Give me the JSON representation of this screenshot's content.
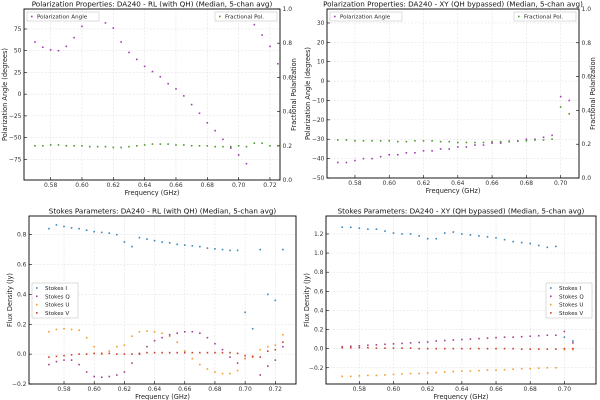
{
  "chart_data": [
    {
      "type": "scatter",
      "title": "Polarization Properties: DA240 - RL (with QH) (Median, 5-chan avg)",
      "xlabel": "Frequency (GHz)",
      "ylabel": "Polarization Angle (degrees)",
      "y2label": "Fractional Polarization",
      "xlim": [
        0.563,
        0.7264
      ],
      "ylim": [
        -98.8,
        98
      ],
      "y2lim": [
        0,
        1
      ],
      "xticks": [
        "0.58",
        "0.60",
        "0.62",
        "0.64",
        "0.66",
        "0.68",
        "0.70",
        "0.72"
      ],
      "yticks": [
        "-75",
        "-50",
        "-25",
        "0",
        "25",
        "50",
        "75"
      ],
      "y2ticks": [
        "0.0",
        "0.2",
        "0.4",
        "0.6",
        "0.8",
        "1.0"
      ],
      "grid": true,
      "ylabel_color": "#a23cb4",
      "y2label_color": "#4c9a2a",
      "legend": [
        {
          "label": "Polarization Angle",
          "placement": "top-left"
        },
        {
          "label": "Fractional Pol.",
          "placement": "top-right"
        }
      ],
      "x": [
        0.57,
        0.575,
        0.58,
        0.585,
        0.59,
        0.595,
        0.6,
        0.605,
        0.61,
        0.615,
        0.62,
        0.625,
        0.63,
        0.635,
        0.64,
        0.645,
        0.65,
        0.655,
        0.66,
        0.665,
        0.67,
        0.675,
        0.68,
        0.685,
        0.69,
        0.695,
        0.7,
        0.705,
        0.71,
        0.715,
        0.72,
        0.725
      ],
      "series": [
        {
          "name": "Polarization Angle",
          "axis": "left",
          "color": "#a23cb4",
          "values": [
            60,
            54,
            51,
            50,
            55,
            65,
            78,
            85,
            86,
            82,
            76,
            60,
            48,
            40,
            32,
            26,
            20,
            12,
            6,
            -2,
            -12,
            -22,
            -33,
            -42,
            -52,
            -62,
            -70,
            -80,
            80,
            68,
            55,
            35
          ]
        },
        {
          "name": "Fractional Pol.",
          "axis": "right",
          "color": "#4c9a2a",
          "values": [
            0.2,
            0.2,
            0.205,
            0.205,
            0.2,
            0.2,
            0.2,
            0.195,
            0.195,
            0.195,
            0.19,
            0.19,
            0.195,
            0.2,
            0.205,
            0.21,
            0.21,
            0.21,
            0.205,
            0.205,
            0.2,
            0.2,
            0.2,
            0.195,
            0.195,
            0.195,
            0.2,
            0.195,
            0.215,
            0.215,
            0.2,
            0.2
          ]
        }
      ]
    },
    {
      "type": "scatter",
      "title": "Polarization Properties: DA240 - XY (QH bypassed) (Median, 5-chan avg)",
      "xlabel": "Frequency (GHz)",
      "ylabel": "Polarization Angle (degrees)",
      "y2label": "Fractional Polarization",
      "xlim": [
        0.5637,
        0.7107
      ],
      "ylim": [
        -50,
        37.2
      ],
      "y2lim": [
        0,
        1
      ],
      "xticks": [
        "0.58",
        "0.60",
        "0.62",
        "0.64",
        "0.66",
        "0.68",
        "0.70"
      ],
      "yticks": [
        "-50",
        "-40",
        "-30",
        "-20",
        "-10",
        "0",
        "10",
        "20",
        "30"
      ],
      "y2ticks": [
        "0.0",
        "0.2",
        "0.4",
        "0.6",
        "0.8",
        "1.0"
      ],
      "grid": true,
      "ylabel_color": "#a23cb4",
      "y2label_color": "#4c9a2a",
      "legend": [
        {
          "label": "Polarization Angle",
          "placement": "top-left"
        },
        {
          "label": "Fractional Pol.",
          "placement": "top-right"
        }
      ],
      "x": [
        0.57,
        0.575,
        0.58,
        0.585,
        0.59,
        0.595,
        0.6,
        0.605,
        0.61,
        0.615,
        0.62,
        0.625,
        0.63,
        0.635,
        0.64,
        0.645,
        0.65,
        0.655,
        0.66,
        0.665,
        0.67,
        0.675,
        0.68,
        0.685,
        0.69,
        0.695,
        0.7,
        0.705
      ],
      "series": [
        {
          "name": "Polarization Angle",
          "axis": "left",
          "color": "#a23cb4",
          "values": [
            -42,
            -42,
            -41,
            -40,
            -40,
            -39,
            -38,
            -38,
            -37,
            -37,
            -36,
            -36,
            -35,
            -35,
            -34,
            -34,
            -33,
            -33,
            -32,
            -32,
            -31,
            -31,
            -30,
            -30,
            -29,
            -28,
            -8,
            -10
          ]
        },
        {
          "name": "Fractional Pol.",
          "axis": "right",
          "color": "#4c9a2a",
          "values": [
            0.225,
            0.225,
            0.22,
            0.22,
            0.22,
            0.22,
            0.22,
            0.215,
            0.215,
            0.22,
            0.22,
            0.22,
            0.215,
            0.215,
            0.21,
            0.21,
            0.21,
            0.21,
            0.215,
            0.215,
            0.215,
            0.22,
            0.22,
            0.225,
            0.225,
            0.23,
            0.42,
            0.38
          ]
        }
      ]
    },
    {
      "type": "scatter",
      "title": "Stokes Parameters: DA240 - RL (with QH) (Median, 5-chan avg)",
      "xlabel": "Frequency (GHz)",
      "ylabel": "Flux Density (Jy)",
      "xlim": [
        0.5568,
        0.7337
      ],
      "ylim": [
        -0.2,
        0.925
      ],
      "xticks": [
        "0.58",
        "0.60",
        "0.62",
        "0.64",
        "0.66",
        "0.68",
        "0.70",
        "0.72"
      ],
      "yticks": [
        "-0.2",
        "0.0",
        "0.2",
        "0.4",
        "0.6",
        "0.8"
      ],
      "grid": true,
      "legend_placement": "center-left",
      "x": [
        0.57,
        0.575,
        0.58,
        0.585,
        0.59,
        0.595,
        0.6,
        0.605,
        0.61,
        0.615,
        0.62,
        0.625,
        0.63,
        0.635,
        0.64,
        0.645,
        0.65,
        0.655,
        0.66,
        0.665,
        0.67,
        0.675,
        0.68,
        0.685,
        0.69,
        0.695,
        0.7,
        0.705,
        0.71,
        0.715,
        0.72,
        0.725
      ],
      "series": [
        {
          "name": "Stokes I",
          "color": "#3a87b9",
          "values": [
            0.84,
            0.865,
            0.855,
            0.845,
            0.84,
            0.83,
            0.82,
            0.815,
            0.81,
            0.8,
            0.75,
            0.72,
            0.78,
            0.77,
            0.76,
            0.75,
            0.745,
            0.735,
            0.73,
            0.725,
            0.72,
            0.71,
            0.705,
            0.7,
            0.695,
            0.695,
            0.28,
            0.17,
            0.7,
            0.4,
            0.36,
            0.7
          ]
        },
        {
          "name": "Stokes Q",
          "color": "#a2418f",
          "values": [
            -0.07,
            -0.05,
            -0.04,
            -0.04,
            -0.07,
            -0.12,
            -0.15,
            -0.155,
            -0.15,
            -0.14,
            -0.12,
            -0.06,
            0.0,
            0.05,
            0.09,
            0.11,
            0.13,
            0.14,
            0.15,
            0.15,
            0.14,
            0.11,
            0.07,
            0.03,
            -0.02,
            -0.06,
            -0.03,
            -0.02,
            -0.14,
            -0.08,
            -0.04,
            0.05
          ]
        },
        {
          "name": "Stokes U",
          "color": "#f29a2e",
          "values": [
            0.15,
            0.165,
            0.17,
            0.165,
            0.16,
            0.11,
            0.05,
            0.0,
            0.02,
            0.05,
            0.06,
            0.12,
            0.15,
            0.155,
            0.15,
            0.14,
            0.12,
            0.08,
            0.02,
            -0.03,
            -0.07,
            -0.1,
            -0.12,
            -0.13,
            -0.13,
            -0.11,
            -0.03,
            -0.02,
            0.03,
            0.05,
            0.06,
            0.13
          ]
        },
        {
          "name": "Stokes V",
          "color": "#c8402a",
          "values": [
            -0.02,
            -0.015,
            -0.01,
            -0.005,
            0.0,
            0.0,
            0.005,
            0.005,
            0.005,
            0.0,
            0.0,
            0.0,
            0.005,
            0.01,
            0.01,
            0.01,
            0.01,
            0.01,
            0.01,
            0.01,
            0.01,
            0.01,
            0.01,
            0.01,
            0.01,
            0.005,
            -0.01,
            -0.015,
            -0.02,
            0.02,
            0.03,
            0.08
          ]
        }
      ]
    },
    {
      "type": "scatter",
      "title": "Stokes Parameters: DA240 - XY (QH bypassed) (Median, 5-chan avg)",
      "xlabel": "Frequency (GHz)",
      "ylabel": "Flux Density (Jy)",
      "xlim": [
        0.5605,
        0.7185
      ],
      "ylim": [
        -0.37,
        1.388
      ],
      "xticks": [
        "0.58",
        "0.60",
        "0.62",
        "0.64",
        "0.66",
        "0.68",
        "0.70"
      ],
      "yticks": [
        "-0.2",
        "0.0",
        "0.2",
        "0.4",
        "0.6",
        "0.8",
        "1.0",
        "1.2"
      ],
      "grid": true,
      "legend_placement": "center-right",
      "x": [
        0.57,
        0.575,
        0.58,
        0.585,
        0.59,
        0.595,
        0.6,
        0.605,
        0.61,
        0.615,
        0.62,
        0.625,
        0.63,
        0.635,
        0.64,
        0.645,
        0.65,
        0.655,
        0.66,
        0.665,
        0.67,
        0.675,
        0.68,
        0.685,
        0.69,
        0.695,
        0.7,
        0.705
      ],
      "series": [
        {
          "name": "Stokes I",
          "color": "#3a87b9",
          "values": [
            1.27,
            1.27,
            1.26,
            1.25,
            1.25,
            1.23,
            1.21,
            1.2,
            1.2,
            1.18,
            1.15,
            1.15,
            1.21,
            1.22,
            1.2,
            1.19,
            1.18,
            1.17,
            1.16,
            1.14,
            1.12,
            1.11,
            1.1,
            1.08,
            1.06,
            1.07,
            0.12,
            0.08
          ]
        },
        {
          "name": "Stokes Q",
          "color": "#a2418f",
          "values": [
            0.02,
            0.025,
            0.03,
            0.035,
            0.04,
            0.045,
            0.05,
            0.055,
            0.06,
            0.065,
            0.07,
            0.08,
            0.085,
            0.09,
            0.095,
            0.1,
            0.105,
            0.11,
            0.115,
            0.12,
            0.12,
            0.125,
            0.13,
            0.135,
            0.14,
            0.14,
            0.18,
            0.06
          ]
        },
        {
          "name": "Stokes U",
          "color": "#f29a2e",
          "values": [
            -0.29,
            -0.29,
            -0.285,
            -0.28,
            -0.28,
            -0.275,
            -0.27,
            -0.265,
            -0.26,
            -0.26,
            -0.255,
            -0.25,
            -0.245,
            -0.24,
            -0.235,
            -0.235,
            -0.23,
            -0.225,
            -0.225,
            -0.22,
            -0.215,
            -0.21,
            -0.21,
            -0.205,
            -0.2,
            -0.2,
            -0.01,
            -0.01
          ]
        },
        {
          "name": "Stokes V",
          "color": "#c8402a",
          "values": [
            0.01,
            0.01,
            0.01,
            0.01,
            0.005,
            0.005,
            0.005,
            0.005,
            0.005,
            0,
            0,
            0,
            0,
            0,
            0,
            0,
            0,
            0,
            0,
            0,
            0,
            -0.005,
            -0.005,
            -0.005,
            -0.005,
            -0.005,
            0,
            0
          ]
        }
      ]
    }
  ]
}
